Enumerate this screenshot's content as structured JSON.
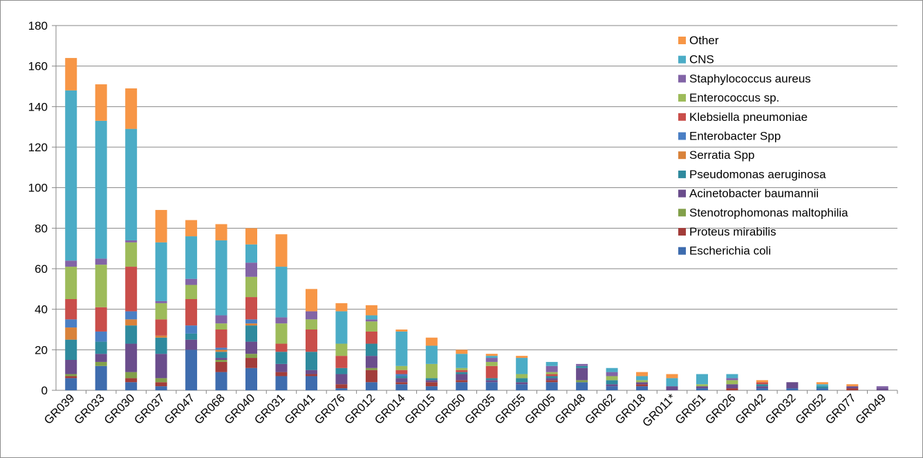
{
  "chart_data": {
    "type": "bar",
    "stacked": true,
    "title": "",
    "xlabel": "",
    "ylabel": "",
    "ylim": [
      0,
      180
    ],
    "yticks": [
      0,
      20,
      40,
      60,
      80,
      100,
      120,
      140,
      160,
      180
    ],
    "grid": "horizontal",
    "legend_position": "top-right",
    "categories": [
      "GR039",
      "GR033",
      "GR030",
      "GR037",
      "GR047",
      "GR068",
      "GR040",
      "GR031",
      "GR041",
      "GR076",
      "GR012",
      "GR014",
      "GR015",
      "GR050",
      "GR035",
      "GR055",
      "GR005",
      "GR048",
      "GR062",
      "GR018",
      "GR011*",
      "GR051",
      "GR026",
      "GR042",
      "GR032",
      "GR052",
      "GR077",
      "GR049"
    ],
    "series": [
      {
        "name": "Escherichia coli",
        "color": "#3e6cae",
        "values": [
          6,
          12,
          4,
          2,
          20,
          9,
          11,
          7,
          7,
          1,
          4,
          3,
          2,
          4,
          4,
          3,
          4,
          4,
          2,
          2,
          0,
          1,
          0,
          1,
          1,
          1,
          0,
          0
        ]
      },
      {
        "name": "Proteus mirabilis",
        "color": "#a23d3a",
        "values": [
          1,
          0,
          2,
          2,
          0,
          5,
          5,
          2,
          1,
          2,
          6,
          1,
          2,
          1,
          0,
          0,
          1,
          0,
          0,
          1,
          0,
          0,
          1,
          0,
          0,
          0,
          1,
          0
        ]
      },
      {
        "name": "Stenotrophomonas maltophilia",
        "color": "#82a04a",
        "values": [
          1,
          2,
          3,
          2,
          0,
          1,
          2,
          0,
          0,
          0,
          1,
          0,
          0,
          0,
          0,
          0,
          0,
          1,
          0,
          0,
          0,
          0,
          0,
          0,
          0,
          0,
          0,
          0
        ]
      },
      {
        "name": "Acinetobacter baumannii",
        "color": "#6a4d8c",
        "values": [
          7,
          4,
          14,
          12,
          5,
          1,
          6,
          4,
          2,
          5,
          6,
          2,
          1,
          3,
          1,
          1,
          1,
          6,
          1,
          1,
          2,
          1,
          2,
          1,
          3,
          0,
          1,
          1
        ]
      },
      {
        "name": "Pseudomonas aeruginosa",
        "color": "#2f8a9e",
        "values": [
          10,
          6,
          9,
          8,
          3,
          3,
          8,
          6,
          9,
          3,
          6,
          1,
          1,
          1,
          1,
          2,
          1,
          1,
          2,
          0,
          0,
          0,
          0,
          1,
          0,
          1,
          0,
          0
        ]
      },
      {
        "name": "Serratia Spp",
        "color": "#d9823a",
        "values": [
          6,
          0,
          3,
          1,
          0,
          1,
          1,
          0,
          0,
          0,
          0,
          0,
          0,
          0,
          0,
          0,
          0,
          0,
          0,
          0,
          0,
          0,
          0,
          0,
          0,
          0,
          0,
          0
        ]
      },
      {
        "name": "Enterobacter Spp",
        "color": "#4a7fc4",
        "values": [
          4,
          5,
          4,
          0,
          4,
          1,
          2,
          0,
          0,
          0,
          0,
          1,
          0,
          0,
          0,
          0,
          0,
          0,
          0,
          0,
          0,
          0,
          0,
          0,
          0,
          0,
          0,
          0
        ]
      },
      {
        "name": "Klebsiella pneumoniae",
        "color": "#c94e4a",
        "values": [
          10,
          12,
          22,
          8,
          13,
          9,
          11,
          4,
          11,
          6,
          6,
          2,
          0,
          1,
          6,
          0,
          1,
          0,
          0,
          0,
          0,
          0,
          0,
          1,
          0,
          0,
          0,
          0
        ]
      },
      {
        "name": "Enterococcus sp.",
        "color": "#9dbb5a",
        "values": [
          16,
          21,
          12,
          8,
          7,
          3,
          10,
          10,
          5,
          6,
          5,
          2,
          7,
          1,
          2,
          2,
          1,
          0,
          2,
          1,
          0,
          1,
          2,
          0,
          0,
          0,
          0,
          0
        ]
      },
      {
        "name": "Staphylococcus aureus",
        "color": "#8264a6",
        "values": [
          3,
          3,
          1,
          1,
          3,
          4,
          7,
          3,
          4,
          0,
          1,
          0,
          0,
          0,
          2,
          0,
          3,
          1,
          2,
          0,
          0,
          0,
          1,
          0,
          0,
          0,
          0,
          1
        ]
      },
      {
        "name": "CNS",
        "color": "#4bacc6",
        "values": [
          84,
          68,
          55,
          29,
          21,
          37,
          9,
          25,
          0,
          16,
          2,
          17,
          9,
          7,
          1,
          8,
          2,
          0,
          2,
          2,
          4,
          5,
          2,
          0,
          0,
          1,
          0,
          0
        ]
      },
      {
        "name": "Other",
        "color": "#f79646",
        "values": [
          16,
          18,
          20,
          16,
          8,
          8,
          8,
          16,
          11,
          4,
          5,
          1,
          4,
          2,
          1,
          1,
          0,
          0,
          0,
          2,
          2,
          0,
          0,
          1,
          0,
          1,
          1,
          0
        ]
      }
    ]
  }
}
